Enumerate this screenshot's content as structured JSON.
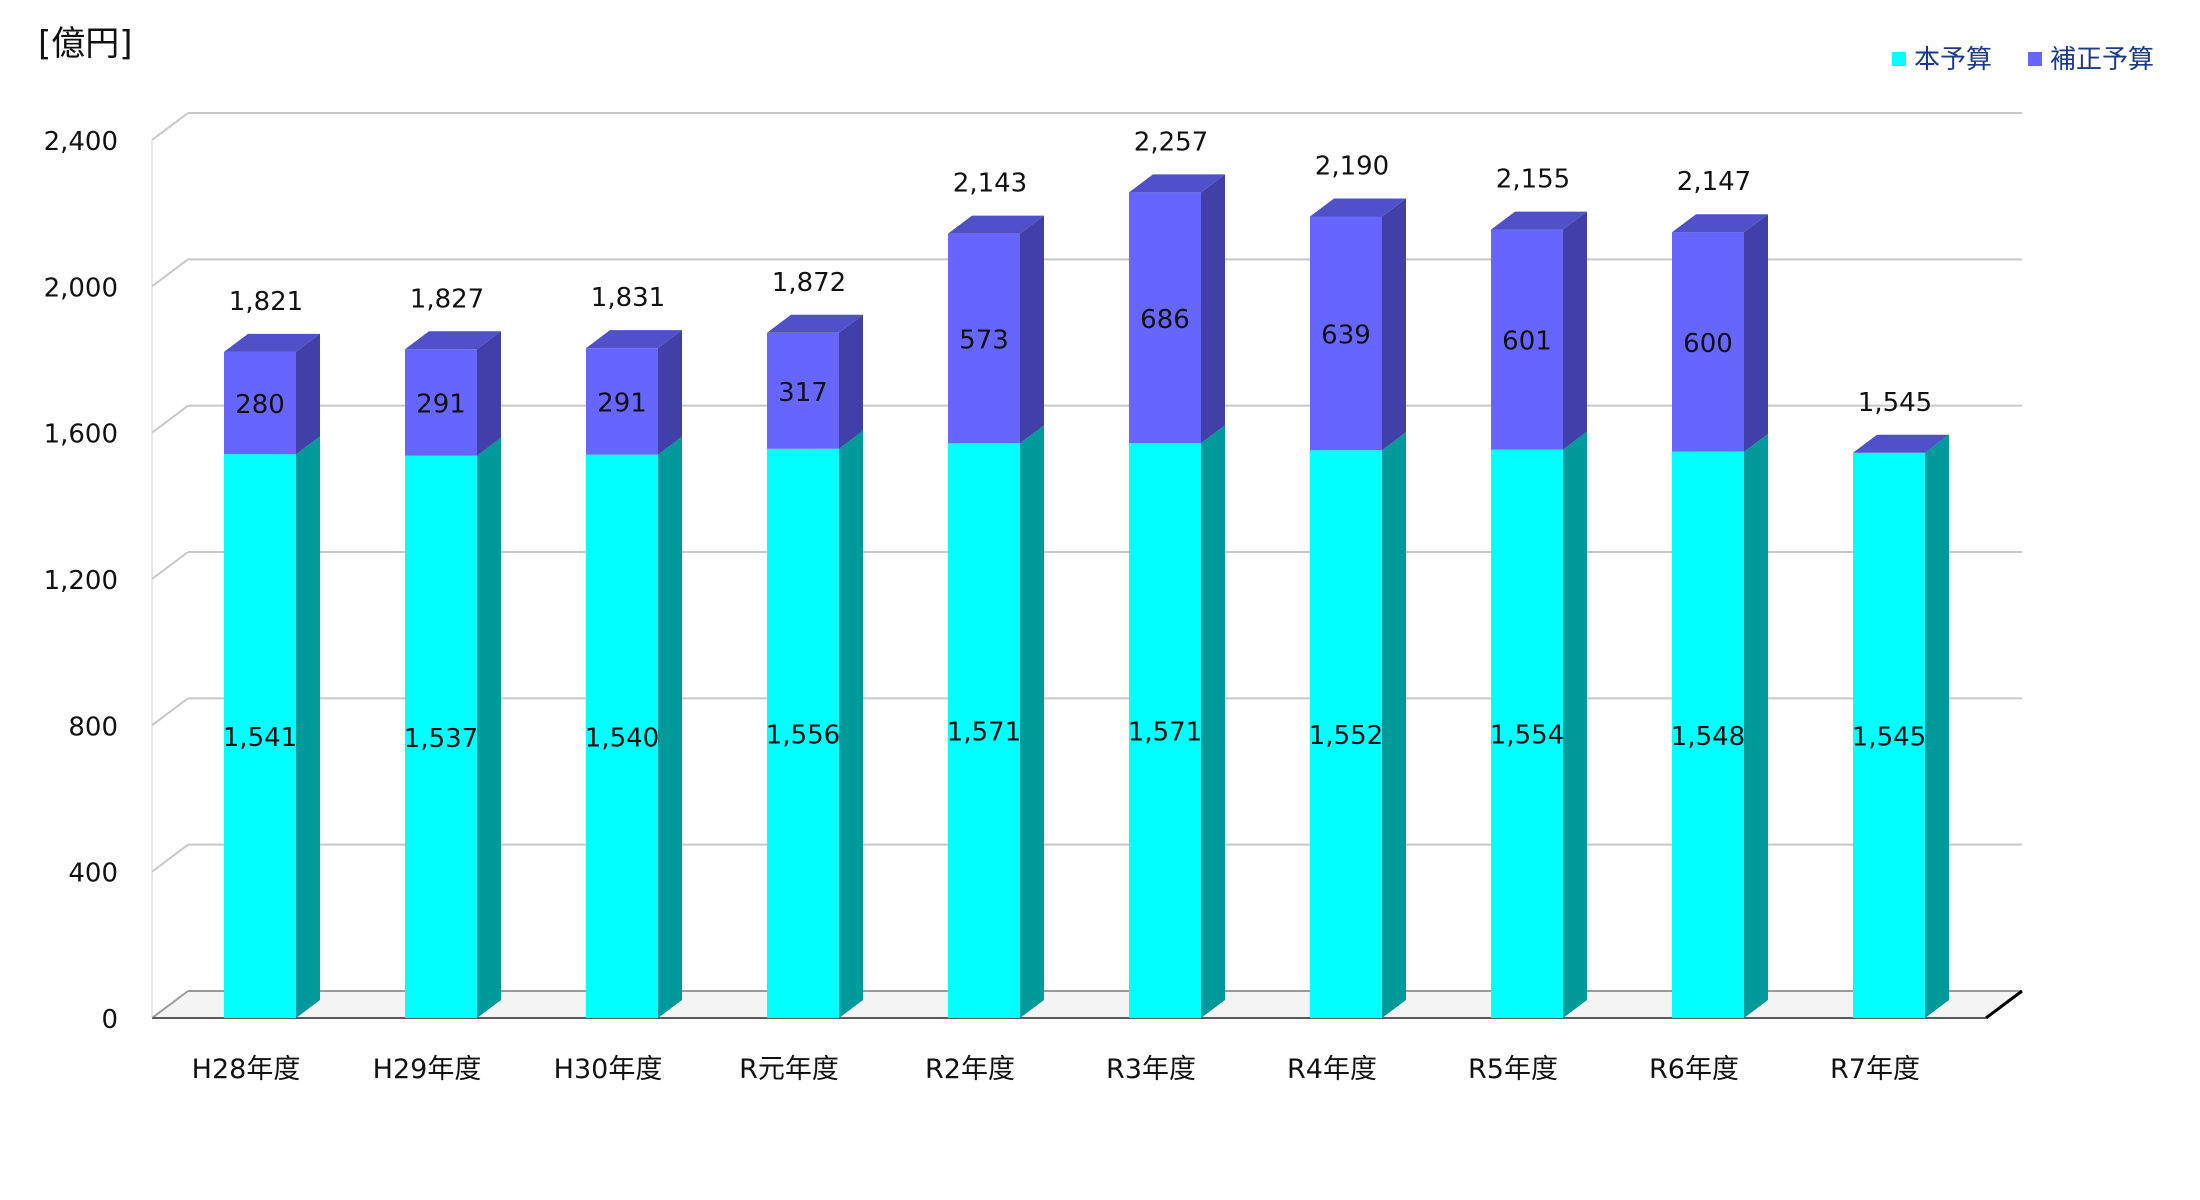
{
  "chart_data": {
    "type": "bar",
    "stacked": true,
    "three_d": true,
    "unit_label": "[億円]",
    "categories": [
      "H28年度",
      "H29年度",
      "H30年度",
      "R元年度",
      "R2年度",
      "R3年度",
      "R4年度",
      "R5年度",
      "R6年度",
      "R7年度"
    ],
    "series": [
      {
        "name": "本予算",
        "values": [
          1541,
          1537,
          1540,
          1556,
          1571,
          1571,
          1552,
          1554,
          1548,
          1545
        ],
        "color": "#00ffff",
        "side_color": "#009a9a"
      },
      {
        "name": "補正予算",
        "values": [
          280,
          291,
          291,
          317,
          573,
          686,
          639,
          601,
          600,
          null
        ],
        "color": "#6666ff",
        "side_color": "#4040a8",
        "top_color": "#5050c8"
      }
    ],
    "series_labels": [
      [
        "1,541",
        "1,537",
        "1,540",
        "1,556",
        "1,571",
        "1,571",
        "1,552",
        "1,554",
        "1,548",
        "1,545"
      ],
      [
        "280",
        "291",
        "291",
        "317",
        "573",
        "686",
        "639",
        "601",
        "600",
        ""
      ]
    ],
    "totals": [
      1821,
      1827,
      1831,
      1872,
      2143,
      2257,
      2190,
      2155,
      2147,
      1545
    ],
    "total_labels": [
      "1,821",
      "1,827",
      "1,831",
      "1,872",
      "2,143",
      "2,257",
      "2,190",
      "2,155",
      "2,147",
      "1,545"
    ],
    "ylim": [
      0,
      2400
    ],
    "yticks": [
      0,
      400,
      800,
      1200,
      1600,
      2000,
      2400
    ],
    "ytick_labels": [
      "0",
      "400",
      "800",
      "1,200",
      "1,600",
      "2,000",
      "2,400"
    ],
    "grid": true,
    "legend_position": "top-right"
  }
}
